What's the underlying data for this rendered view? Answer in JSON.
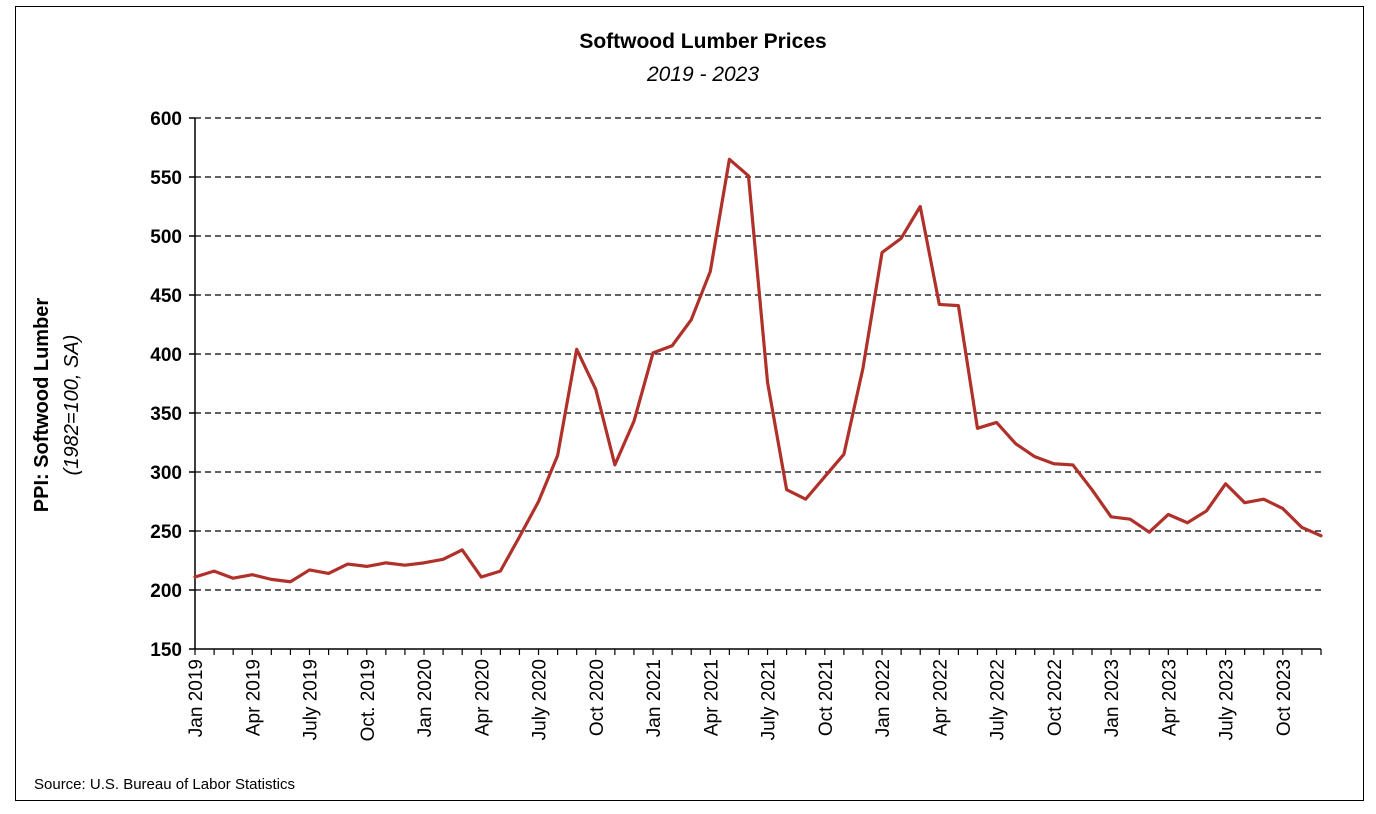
{
  "chart_data": {
    "type": "line",
    "title": "Softwood Lumber Prices",
    "subtitle": "2019 - 2023",
    "ylabel": "PPI: Softwood Lumber",
    "ylabel_sub": "(1982=100, SA)",
    "source": "Source: U.S. Bureau of Labor Statistics",
    "ylim": [
      150,
      600
    ],
    "yticks": [
      150,
      200,
      250,
      300,
      350,
      400,
      450,
      500,
      550,
      600
    ],
    "grid": "dashed horizontal",
    "line_color": "#b0302a",
    "x_tick_labels": [
      {
        "index": 0,
        "label": "Jan 2019"
      },
      {
        "index": 3,
        "label": "Apr 2019"
      },
      {
        "index": 6,
        "label": "July 2019"
      },
      {
        "index": 9,
        "label": "Oct. 2019"
      },
      {
        "index": 12,
        "label": "Jan 2020"
      },
      {
        "index": 15,
        "label": "Apr 2020"
      },
      {
        "index": 18,
        "label": "July 2020"
      },
      {
        "index": 21,
        "label": "Oct 2020"
      },
      {
        "index": 24,
        "label": "Jan 2021"
      },
      {
        "index": 27,
        "label": "Apr 2021"
      },
      {
        "index": 30,
        "label": "July 2021"
      },
      {
        "index": 33,
        "label": "Oct 2021"
      },
      {
        "index": 36,
        "label": "Jan 2022"
      },
      {
        "index": 39,
        "label": "Apr 2022"
      },
      {
        "index": 42,
        "label": "July 2022"
      },
      {
        "index": 45,
        "label": "Oct 2022"
      },
      {
        "index": 48,
        "label": "Jan 2023"
      },
      {
        "index": 51,
        "label": "Apr 2023"
      },
      {
        "index": 54,
        "label": "July 2023"
      },
      {
        "index": 57,
        "label": "Oct 2023"
      }
    ],
    "x": [
      "2019-01",
      "2019-02",
      "2019-03",
      "2019-04",
      "2019-05",
      "2019-06",
      "2019-07",
      "2019-08",
      "2019-09",
      "2019-10",
      "2019-11",
      "2019-12",
      "2020-01",
      "2020-02",
      "2020-03",
      "2020-04",
      "2020-05",
      "2020-06",
      "2020-07",
      "2020-08",
      "2020-09",
      "2020-10",
      "2020-11",
      "2020-12",
      "2021-01",
      "2021-02",
      "2021-03",
      "2021-04",
      "2021-05",
      "2021-06",
      "2021-07",
      "2021-08",
      "2021-09",
      "2021-10",
      "2021-11",
      "2021-12",
      "2022-01",
      "2022-02",
      "2022-03",
      "2022-04",
      "2022-05",
      "2022-06",
      "2022-07",
      "2022-08",
      "2022-09",
      "2022-10",
      "2022-11",
      "2022-12",
      "2023-01",
      "2023-02",
      "2023-03",
      "2023-04",
      "2023-05",
      "2023-06",
      "2023-07",
      "2023-08",
      "2023-09",
      "2023-10",
      "2023-11",
      "2023-12"
    ],
    "series": [
      {
        "values": [
          211,
          216,
          210,
          213,
          209,
          207,
          217,
          214,
          222,
          220,
          223,
          221,
          223,
          226,
          234,
          211,
          216,
          245,
          275,
          314,
          404,
          370,
          306,
          343,
          401,
          407,
          429,
          470,
          565,
          551,
          376,
          285,
          277,
          296,
          315,
          388,
          486,
          498,
          525,
          442,
          441,
          337,
          342,
          324,
          313,
          307,
          306,
          285,
          262,
          260,
          249,
          264,
          257,
          267,
          290,
          274,
          277,
          269,
          253,
          246
        ]
      }
    ]
  }
}
